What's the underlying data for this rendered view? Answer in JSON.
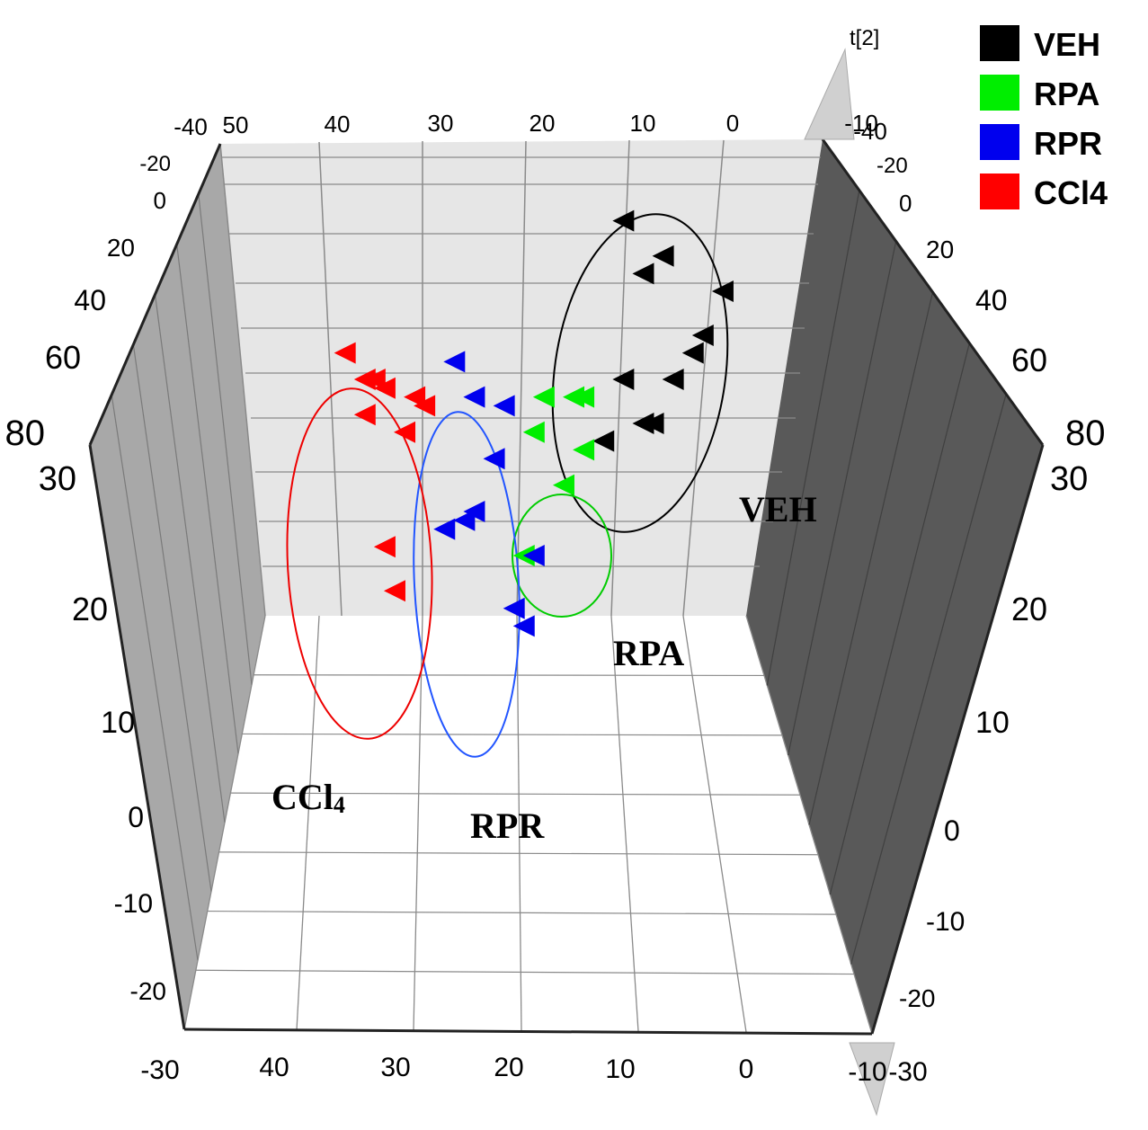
{
  "chart_data": {
    "type": "scatter",
    "subtype": "3d-scatter",
    "marker": "triangle-left",
    "axis_name": "t[2]",
    "legend": [
      {
        "name": "VEH",
        "color": "#000000"
      },
      {
        "name": "RPA",
        "color": "#00ee00"
      },
      {
        "name": "RPR",
        "color": "#0000ee"
      },
      {
        "name": "CCl4",
        "color": "#ff0000"
      }
    ],
    "group_labels": [
      {
        "text": "VEH",
        "sub": ""
      },
      {
        "text": "RPA",
        "sub": ""
      },
      {
        "text": "RPR",
        "sub": ""
      },
      {
        "text": "CCl",
        "sub": "4"
      }
    ],
    "ticks": {
      "top_axis": [
        "-40",
        "50",
        "40",
        "30",
        "20",
        "10",
        "0",
        "-10"
      ],
      "top_right_axis": [
        "-40"
      ],
      "left_depth": [
        "-20",
        "0",
        "20",
        "40",
        "60",
        "80"
      ],
      "right_depth": [
        "-20",
        "0",
        "20",
        "40",
        "60",
        "80"
      ],
      "left_vertical": [
        "30",
        "20",
        "10",
        "0",
        "-10",
        "-20"
      ],
      "right_vertical": [
        "30",
        "20",
        "10",
        "0",
        "-10",
        "-20"
      ],
      "bottom_axis": [
        "-30",
        "40",
        "30",
        "20",
        "10",
        "0",
        "-10",
        "-30"
      ]
    },
    "series": [
      {
        "name": "VEH",
        "color": "#000000",
        "points": [
          {
            "x": 11,
            "z": 28,
            "y": 4
          },
          {
            "x": 7,
            "z": 24,
            "y": 4
          },
          {
            "x": 1,
            "z": 20,
            "y": 4
          },
          {
            "x": 9,
            "z": 22,
            "y": 4
          },
          {
            "x": 3,
            "z": 15,
            "y": 4
          },
          {
            "x": 4,
            "z": 13,
            "y": 4
          },
          {
            "x": 6,
            "z": 10,
            "y": 4
          },
          {
            "x": 11,
            "z": 10,
            "y": 4
          },
          {
            "x": 9,
            "z": 5,
            "y": 4
          },
          {
            "x": 8,
            "z": 5,
            "y": 4
          },
          {
            "x": 13,
            "z": 3,
            "y": 4
          }
        ]
      },
      {
        "name": "RPA",
        "color": "#00ee00",
        "points": [
          {
            "x": 19,
            "z": 8,
            "y": 4
          },
          {
            "x": 16,
            "z": 8,
            "y": 4
          },
          {
            "x": 15,
            "z": 8,
            "y": 4
          },
          {
            "x": 20,
            "z": 4,
            "y": 4
          },
          {
            "x": 15,
            "z": 2,
            "y": 4
          },
          {
            "x": 17,
            "z": -2,
            "y": 4
          },
          {
            "x": 21,
            "z": -10,
            "y": 4
          }
        ]
      },
      {
        "name": "RPR",
        "color": "#0000ee",
        "points": [
          {
            "x": 28,
            "z": 12,
            "y": 4
          },
          {
            "x": 26,
            "z": 8,
            "y": 4
          },
          {
            "x": 23,
            "z": 7,
            "y": 4
          },
          {
            "x": 24,
            "z": 1,
            "y": 4
          },
          {
            "x": 26,
            "z": -5,
            "y": 4
          },
          {
            "x": 27,
            "z": -6,
            "y": 4
          },
          {
            "x": 29,
            "z": -7,
            "y": 4
          },
          {
            "x": 20,
            "z": -10,
            "y": 4
          },
          {
            "x": 22,
            "z": -16,
            "y": 4
          },
          {
            "x": 21,
            "z": -18,
            "y": 4
          }
        ]
      },
      {
        "name": "CCl4",
        "color": "#ff0000",
        "points": [
          {
            "x": 39,
            "z": 13,
            "y": 4
          },
          {
            "x": 37,
            "z": 10,
            "y": 4
          },
          {
            "x": 36,
            "z": 10,
            "y": 4
          },
          {
            "x": 35,
            "z": 9,
            "y": 4
          },
          {
            "x": 32,
            "z": 8,
            "y": 4
          },
          {
            "x": 31,
            "z": 7,
            "y": 4
          },
          {
            "x": 37,
            "z": 6,
            "y": 4
          },
          {
            "x": 33,
            "z": 4,
            "y": 4
          },
          {
            "x": 35,
            "z": -9,
            "y": 4
          },
          {
            "x": 34,
            "z": -14,
            "y": 4
          }
        ]
      }
    ]
  }
}
